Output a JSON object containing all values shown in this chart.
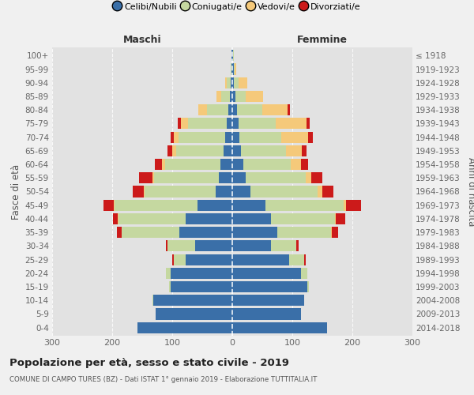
{
  "age_groups": [
    "0-4",
    "5-9",
    "10-14",
    "15-19",
    "20-24",
    "25-29",
    "30-34",
    "35-39",
    "40-44",
    "45-49",
    "50-54",
    "55-59",
    "60-64",
    "65-69",
    "70-74",
    "75-79",
    "80-84",
    "85-89",
    "90-94",
    "95-99",
    "100+"
  ],
  "birth_years": [
    "2014-2018",
    "2009-2013",
    "2004-2008",
    "1999-2003",
    "1994-1998",
    "1989-1993",
    "1984-1988",
    "1979-1983",
    "1974-1978",
    "1969-1973",
    "1964-1968",
    "1959-1963",
    "1954-1958",
    "1949-1953",
    "1944-1948",
    "1939-1943",
    "1934-1938",
    "1929-1933",
    "1924-1928",
    "1919-1923",
    "≤ 1918"
  ],
  "maschi": {
    "celibe": [
      158,
      127,
      132,
      102,
      102,
      78,
      62,
      88,
      78,
      58,
      28,
      22,
      20,
      14,
      12,
      9,
      6,
      4,
      3,
      1,
      1
    ],
    "coniugato": [
      0,
      0,
      1,
      3,
      8,
      20,
      46,
      96,
      112,
      138,
      118,
      108,
      92,
      80,
      78,
      65,
      36,
      14,
      6,
      1,
      0
    ],
    "vedovo": [
      0,
      0,
      0,
      0,
      0,
      0,
      0,
      0,
      1,
      2,
      2,
      3,
      5,
      6,
      8,
      12,
      14,
      8,
      3,
      0,
      0
    ],
    "divorziato": [
      0,
      0,
      0,
      0,
      0,
      2,
      3,
      8,
      8,
      16,
      18,
      22,
      12,
      8,
      5,
      5,
      0,
      0,
      0,
      0,
      0
    ]
  },
  "femmine": {
    "nubile": [
      158,
      115,
      120,
      125,
      115,
      95,
      65,
      75,
      65,
      55,
      30,
      22,
      18,
      15,
      12,
      10,
      8,
      5,
      3,
      2,
      1
    ],
    "coniugata": [
      0,
      0,
      0,
      3,
      10,
      25,
      42,
      90,
      106,
      130,
      112,
      100,
      80,
      75,
      70,
      62,
      42,
      18,
      8,
      2,
      1
    ],
    "vedova": [
      0,
      0,
      0,
      0,
      0,
      0,
      0,
      1,
      2,
      5,
      8,
      10,
      16,
      26,
      44,
      52,
      42,
      28,
      14,
      3,
      1
    ],
    "divorziata": [
      0,
      0,
      0,
      0,
      0,
      2,
      3,
      10,
      15,
      25,
      18,
      18,
      12,
      8,
      8,
      5,
      4,
      0,
      0,
      0,
      0
    ]
  },
  "colors": {
    "celibe": "#3A6FA8",
    "coniugato": "#C5D8A0",
    "vedovo": "#F5C97A",
    "divorziato": "#CC1A1A"
  },
  "legend_labels": [
    "Celibi/Nubili",
    "Coniugati/e",
    "Vedovi/e",
    "Divorziati/e"
  ],
  "label_maschi": "Maschi",
  "label_femmine": "Femmine",
  "ylabel_left": "Fasce di età",
  "ylabel_right": "Anni di nascita",
  "title": "Popolazione per età, sesso e stato civile - 2019",
  "subtitle": "COMUNE DI CAMPO TURES (BZ) - Dati ISTAT 1° gennaio 2019 - Elaborazione TUTTITALIA.IT",
  "xlim": 300,
  "bg_color": "#f0f0f0",
  "plot_bg_color": "#e2e2e2"
}
